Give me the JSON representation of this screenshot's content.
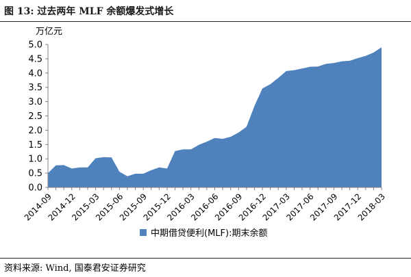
{
  "figure": {
    "title": "图 13:  过去两年 MLF 余额爆发式增长",
    "source": "资料来源:  Wind,  国泰君安证券研究"
  },
  "colors": {
    "series_fill": "#4F81BD",
    "axis": "#808080",
    "text": "#000000"
  },
  "chart_data": {
    "type": "area",
    "y_unit_label": "万亿元",
    "ylim": [
      0,
      5
    ],
    "yticks": [
      "0.0",
      "0.5",
      "1.0",
      "1.5",
      "2.0",
      "2.5",
      "3.0",
      "3.5",
      "4.0",
      "4.5",
      "5.0"
    ],
    "xtick_labels": [
      "2014-09",
      "2014-12",
      "2015-03",
      "2015-06",
      "2015-09",
      "2015-12",
      "2016-03",
      "2016-06",
      "2016-09",
      "2016-12",
      "2017-03",
      "2017-06",
      "2017-09",
      "2017-12",
      "2018-03"
    ],
    "x": [
      "2014-09",
      "2014-10",
      "2014-11",
      "2014-12",
      "2015-01",
      "2015-02",
      "2015-03",
      "2015-04",
      "2015-05",
      "2015-06",
      "2015-07",
      "2015-08",
      "2015-09",
      "2015-10",
      "2015-11",
      "2015-12",
      "2016-01",
      "2016-02",
      "2016-03",
      "2016-04",
      "2016-05",
      "2016-06",
      "2016-07",
      "2016-08",
      "2016-09",
      "2016-10",
      "2016-11",
      "2016-12",
      "2017-01",
      "2017-02",
      "2017-03",
      "2017-04",
      "2017-05",
      "2017-06",
      "2017-07",
      "2017-08",
      "2017-09",
      "2017-10",
      "2017-11",
      "2017-12",
      "2018-01",
      "2018-02",
      "2018-03"
    ],
    "series": [
      {
        "name": "中期借贷便利(MLF):期末余额",
        "values": [
          0.5,
          0.77,
          0.78,
          0.66,
          0.7,
          0.7,
          1.02,
          1.06,
          1.05,
          0.55,
          0.39,
          0.48,
          0.48,
          0.6,
          0.7,
          0.66,
          1.27,
          1.33,
          1.33,
          1.49,
          1.6,
          1.73,
          1.7,
          1.77,
          1.92,
          2.12,
          2.85,
          3.46,
          3.61,
          3.83,
          4.07,
          4.1,
          4.16,
          4.22,
          4.23,
          4.32,
          4.35,
          4.41,
          4.43,
          4.52,
          4.6,
          4.72,
          4.9
        ]
      }
    ],
    "grid": false,
    "legend_position": "bottom"
  }
}
